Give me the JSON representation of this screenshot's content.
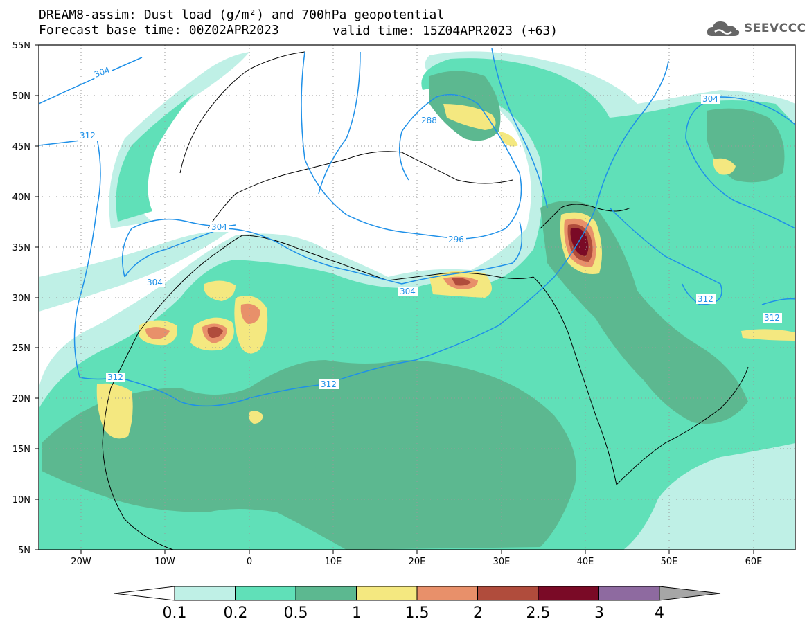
{
  "header": {
    "title_line1": "DREAM8-assim: Dust load (g/m²) and 700hPa geopotential",
    "title_line2": "Forecast base time: 00Z02APR2023",
    "valid_time": "valid time: 15Z04APR2023 (+63)",
    "logo_text": "SEEVCCC",
    "logo_icon": "cloud-icon"
  },
  "map": {
    "lon_labels": [
      "20W",
      "10W",
      "0",
      "10E",
      "20E",
      "30E",
      "40E",
      "50E",
      "60E"
    ],
    "lat_labels": [
      "55N",
      "50N",
      "45N",
      "40N",
      "35N",
      "30N",
      "25N",
      "20N",
      "15N",
      "10N",
      "5N"
    ],
    "contour_labels": [
      {
        "text": "304"
      },
      {
        "text": "312"
      },
      {
        "text": "304"
      },
      {
        "text": "304"
      },
      {
        "text": "288"
      },
      {
        "text": "296"
      },
      {
        "text": "304"
      },
      {
        "text": "312"
      },
      {
        "text": "312"
      },
      {
        "text": "304"
      },
      {
        "text": "312"
      },
      {
        "text": "312"
      }
    ],
    "colors": {
      "contour": "#1e90e8",
      "c01": "#bff0e6",
      "c02": "#60e0b8",
      "c05": "#5cb890",
      "c1": "#f4e880",
      "c15": "#e8906a",
      "c2": "#b04c3c",
      "c25": "#7a0a26",
      "c3": "#8e6aa0",
      "c4": "#a6a6a6"
    }
  },
  "colorbar": {
    "labels": [
      "0.1",
      "0.2",
      "0.5",
      "1",
      "1.5",
      "2",
      "2.5",
      "3",
      "4"
    ],
    "colors": [
      "#bff0e6",
      "#60e0b8",
      "#5cb890",
      "#f4e880",
      "#e8906a",
      "#b04c3c",
      "#7a0a26",
      "#8e6aa0"
    ],
    "under_color": "#ffffff",
    "over_color": "#a6a6a6"
  }
}
